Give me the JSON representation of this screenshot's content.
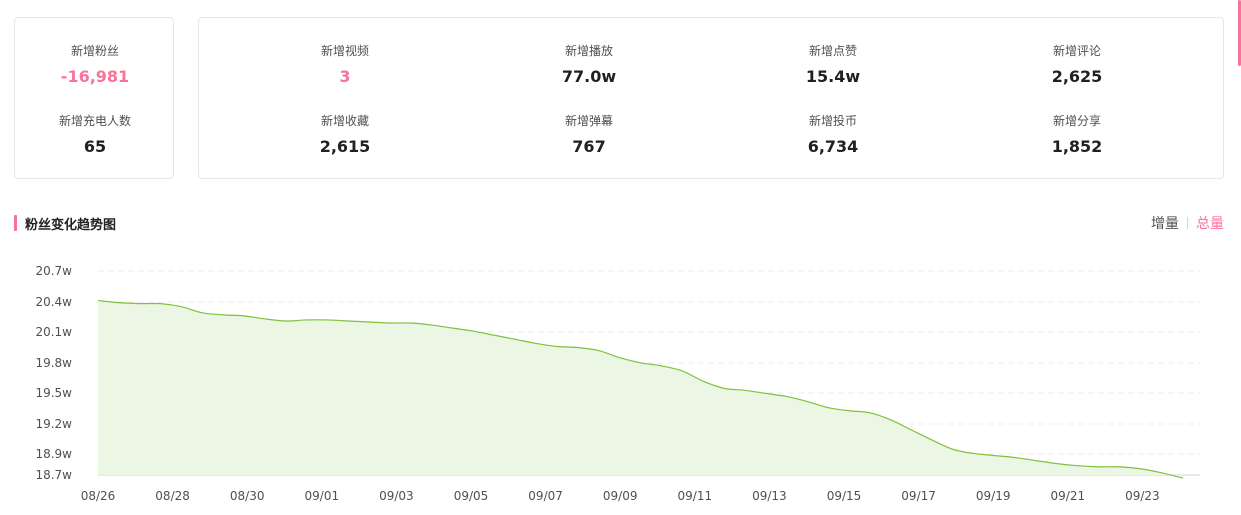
{
  "summary_left": [
    {
      "label": "新增粉丝",
      "value": "-16,981",
      "accent": true
    },
    {
      "label": "新增充电人数",
      "value": "65",
      "accent": false
    }
  ],
  "summary_right": [
    {
      "label": "新增视频",
      "value": "3",
      "accent": true
    },
    {
      "label": "新增播放",
      "value": "77.0w",
      "accent": false
    },
    {
      "label": "新增点赞",
      "value": "15.4w",
      "accent": false
    },
    {
      "label": "新增评论",
      "value": "2,625",
      "accent": false
    },
    {
      "label": "新增收藏",
      "value": "2,615",
      "accent": false
    },
    {
      "label": "新增弹幕",
      "value": "767",
      "accent": false
    },
    {
      "label": "新增投币",
      "value": "6,734",
      "accent": false
    },
    {
      "label": "新增分享",
      "value": "1,852",
      "accent": false
    }
  ],
  "section": {
    "title": "粉丝变化趋势图"
  },
  "toggle": {
    "increment": "增量",
    "total": "总量",
    "active": "total"
  },
  "colors": {
    "accent": "#fb7299",
    "line": "#7dc23c",
    "area": "#ecf6e4"
  },
  "chart_data": {
    "type": "area",
    "y_ticks": [
      "20.7w",
      "20.4w",
      "20.1w",
      "19.8w",
      "19.5w",
      "19.2w",
      "18.9w",
      "18.7w"
    ],
    "ylim": [
      18.7,
      20.7
    ],
    "x_ticks": [
      "08/26",
      "08/28",
      "08/30",
      "09/01",
      "09/03",
      "09/05",
      "09/07",
      "09/09",
      "09/11",
      "09/13",
      "09/15",
      "09/17",
      "09/19",
      "09/21",
      "09/23"
    ],
    "series": [
      {
        "values": [
          20.41,
          20.39,
          20.38,
          20.38,
          20.35,
          20.29,
          20.27,
          20.26,
          20.23,
          20.21,
          20.22,
          20.22,
          20.21,
          20.2,
          20.19,
          20.19,
          20.17,
          20.14,
          20.11,
          20.07,
          20.03,
          19.99,
          19.96,
          19.95,
          19.92,
          19.85,
          19.8,
          19.77,
          19.72,
          19.62,
          19.55,
          19.53,
          19.5,
          19.47,
          19.42,
          19.36,
          19.33,
          19.31,
          19.24,
          19.14,
          19.04,
          18.95,
          18.91,
          18.89,
          18.87,
          18.84,
          18.81,
          18.79,
          18.78,
          18.78,
          18.76,
          18.72,
          18.67
        ]
      }
    ]
  }
}
